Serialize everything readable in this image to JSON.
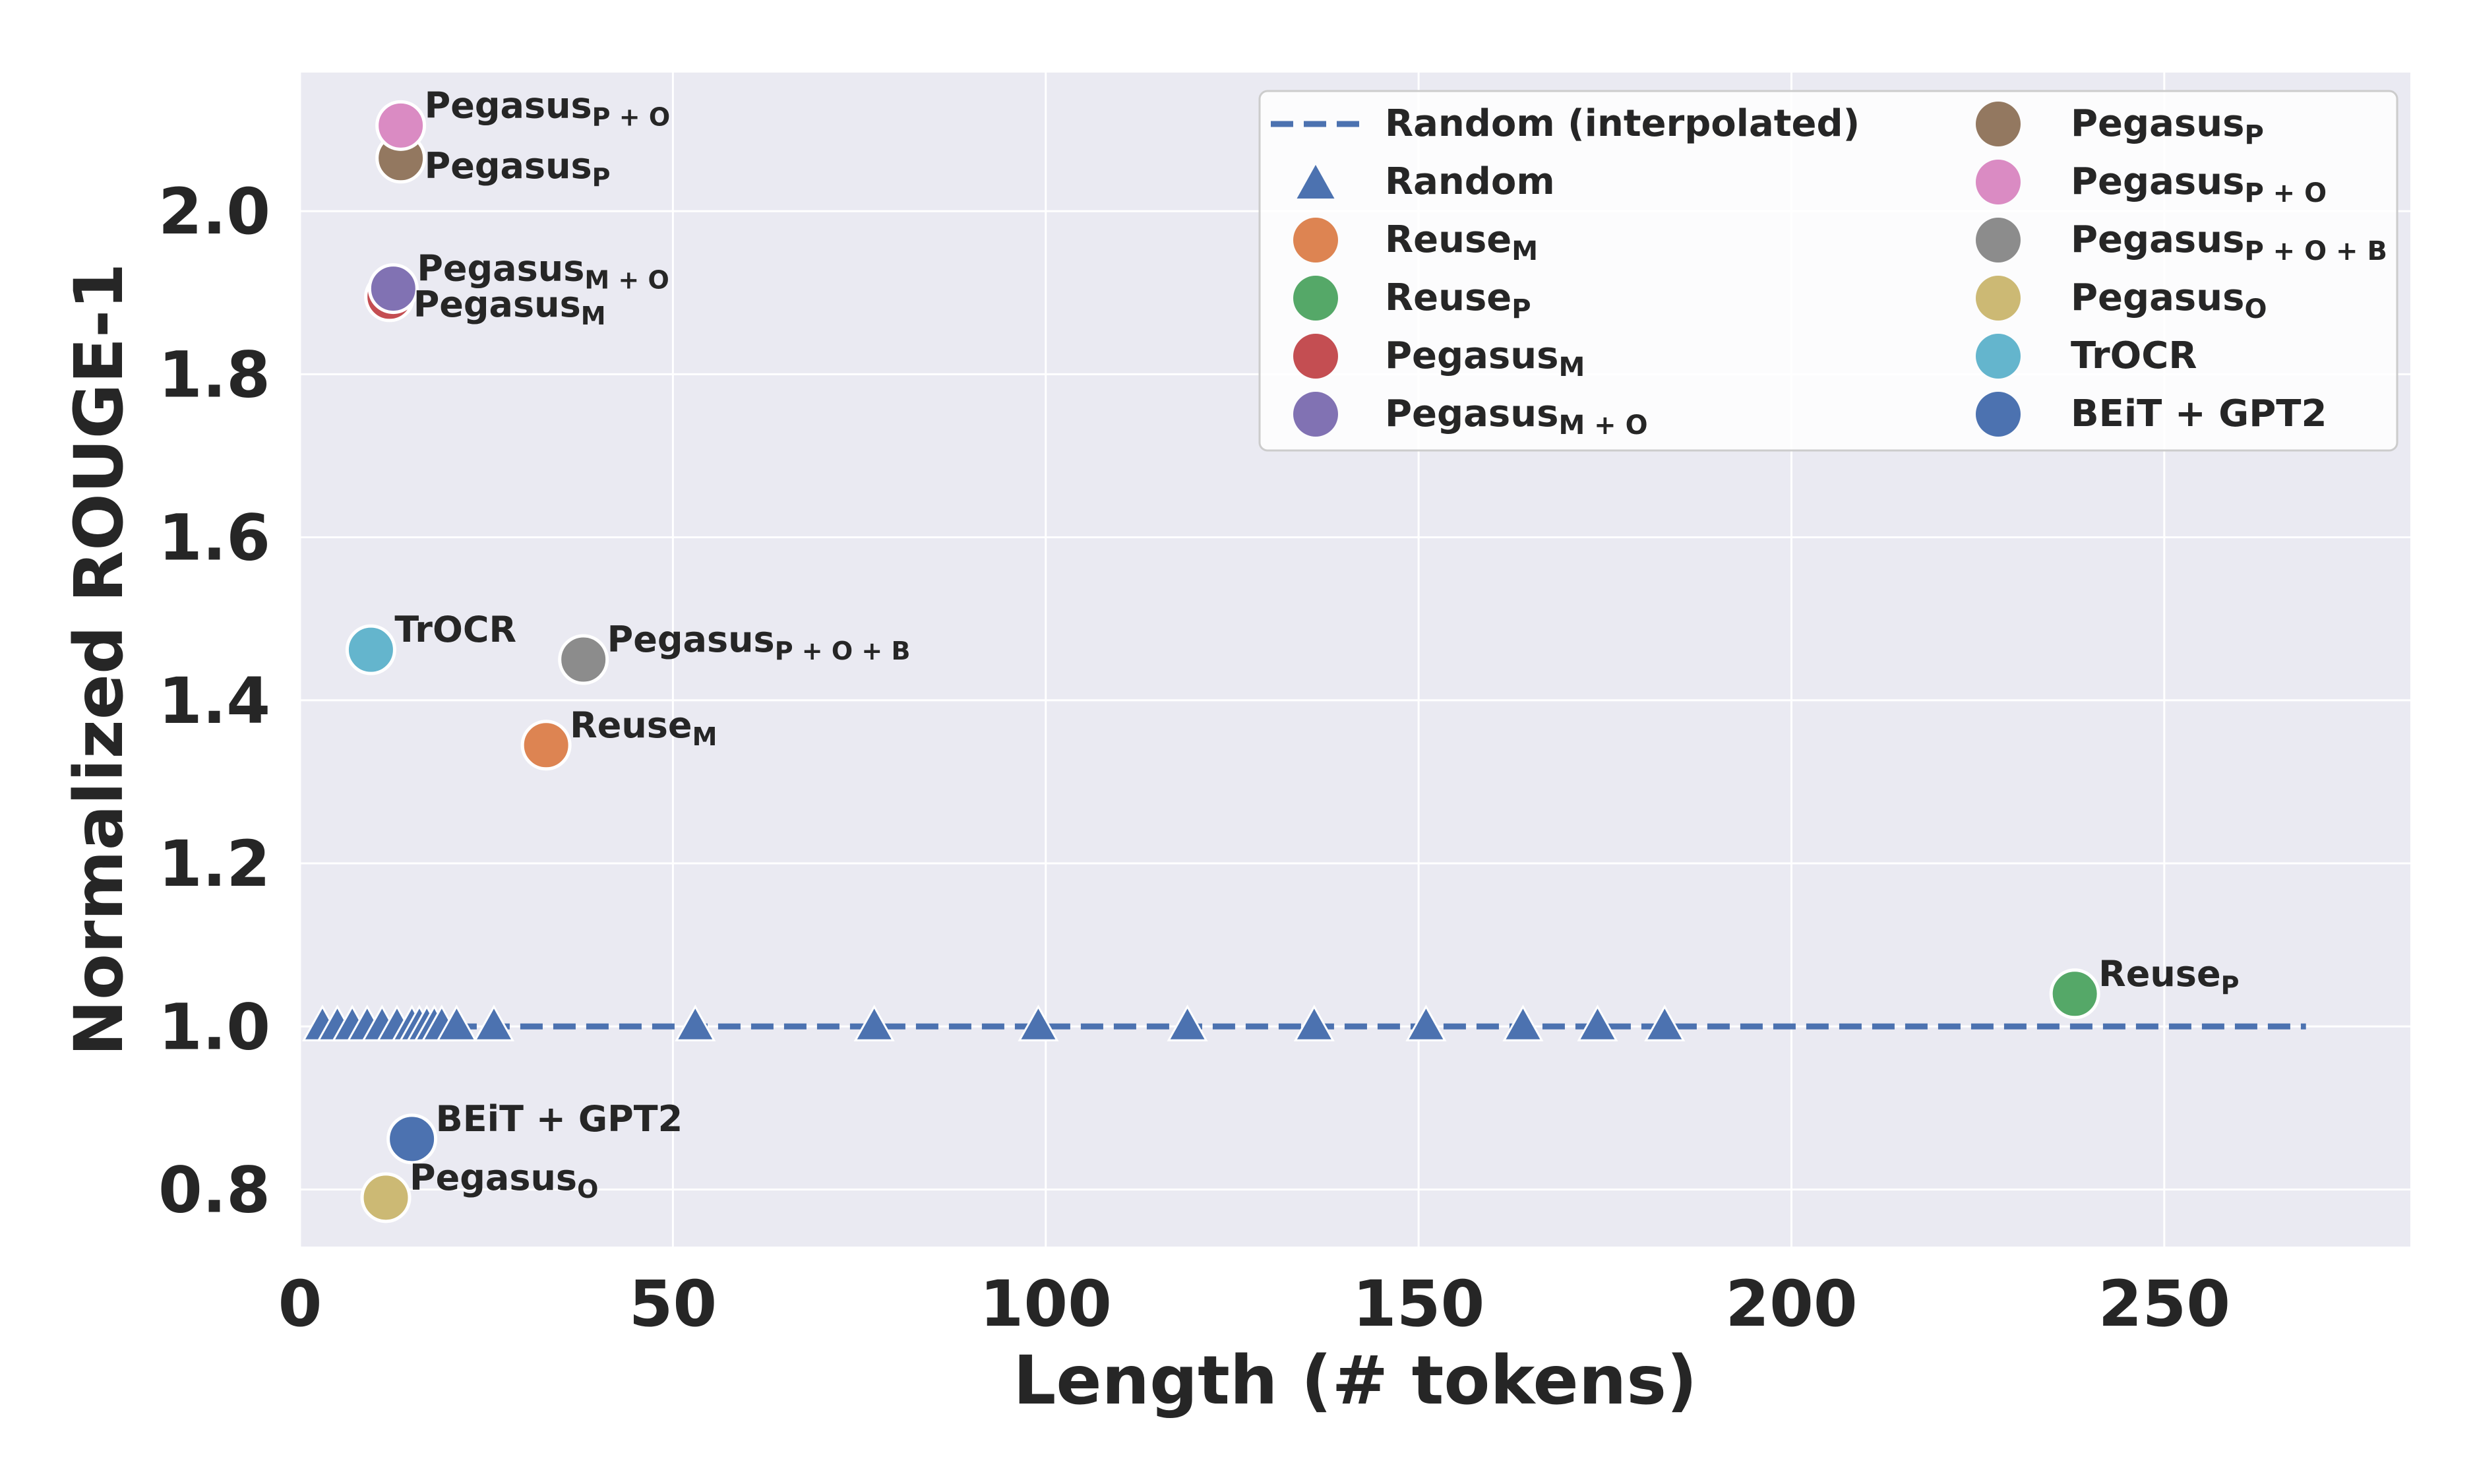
{
  "chart_data": {
    "type": "scatter",
    "xlabel": "Length (# tokens)",
    "ylabel": "Normalized ROUGE-1",
    "xlim": [
      0,
      283
    ],
    "ylim": [
      0.73,
      2.17
    ],
    "xticks": [
      "0",
      "50",
      "100",
      "150",
      "200",
      "250"
    ],
    "yticks": [
      "0.8",
      "1.0",
      "1.2",
      "1.4",
      "1.6",
      "1.8",
      "2.0"
    ],
    "grid": true,
    "legend_position": "top-right",
    "random_line": {
      "label": "Random (interpolated)",
      "color": "#4c72b0",
      "x": [
        3,
        269
      ],
      "y": [
        1.0,
        1.0
      ]
    },
    "random_points": {
      "label": "Random",
      "color": "#4c72b0",
      "x": [
        3,
        5,
        7,
        9,
        11,
        13,
        15,
        16,
        17,
        18,
        19,
        21,
        26,
        53,
        77,
        99,
        119,
        136,
        151,
        164,
        174,
        183
      ],
      "y": [
        1.0,
        1.0,
        1.0,
        1.0,
        1.0,
        1.0,
        1.0,
        1.0,
        1.0,
        1.0,
        1.0,
        1.0,
        1.0,
        1.0,
        1.0,
        1.0,
        1.0,
        1.0,
        1.0,
        1.0,
        1.0,
        1.0
      ]
    },
    "models": [
      {
        "name": "Reuse",
        "sub": "M",
        "x": 33,
        "y": 1.345,
        "color": "#dd8452",
        "label_side": "right"
      },
      {
        "name": "Reuse",
        "sub": "P",
        "x": 238,
        "y": 1.04,
        "color": "#55a868",
        "label_side": "right"
      },
      {
        "name": "Pegasus",
        "sub": "M",
        "x": 12,
        "y": 1.895,
        "color": "#c44e52",
        "label_side": "right-below"
      },
      {
        "name": "Pegasus",
        "sub": "M + O",
        "x": 12.5,
        "y": 1.905,
        "color": "#8172b3",
        "label_side": "right"
      },
      {
        "name": "Pegasus",
        "sub": "P",
        "x": 13.5,
        "y": 2.065,
        "color": "#937860",
        "label_side": "right-below"
      },
      {
        "name": "Pegasus",
        "sub": "P + O",
        "x": 13.5,
        "y": 2.105,
        "color": "#da8bc3",
        "label_side": "right"
      },
      {
        "name": "Pegasus",
        "sub": "P + O + B",
        "x": 38,
        "y": 1.45,
        "color": "#8c8c8c",
        "label_side": "right"
      },
      {
        "name": "Pegasus",
        "sub": "O",
        "x": 11.5,
        "y": 0.79,
        "color": "#ccb974",
        "label_side": "right"
      },
      {
        "name": "TrOCR",
        "sub": "",
        "x": 9.5,
        "y": 1.462,
        "color": "#64b5cd",
        "label_side": "right"
      },
      {
        "name": "BEiT + GPT2",
        "sub": "",
        "x": 15,
        "y": 0.862,
        "color": "#4c72b0",
        "label_side": "right"
      }
    ],
    "legend": [
      {
        "kind": "line",
        "name": "Random (interpolated)",
        "sub": "",
        "color": "#4c72b0"
      },
      {
        "kind": "triangle",
        "name": "Random",
        "sub": "",
        "color": "#4c72b0"
      },
      {
        "kind": "dot",
        "name": "Reuse",
        "sub": "M",
        "color": "#dd8452"
      },
      {
        "kind": "dot",
        "name": "Reuse",
        "sub": "P",
        "color": "#55a868"
      },
      {
        "kind": "dot",
        "name": "Pegasus",
        "sub": "M",
        "color": "#c44e52"
      },
      {
        "kind": "dot",
        "name": "Pegasus",
        "sub": "M + O",
        "color": "#8172b3"
      },
      {
        "kind": "dot",
        "name": "Pegasus",
        "sub": "P",
        "color": "#937860"
      },
      {
        "kind": "dot",
        "name": "Pegasus",
        "sub": "P + O",
        "color": "#da8bc3"
      },
      {
        "kind": "dot",
        "name": "Pegasus",
        "sub": "P + O + B",
        "color": "#8c8c8c"
      },
      {
        "kind": "dot",
        "name": "Pegasus",
        "sub": "O",
        "color": "#ccb974"
      },
      {
        "kind": "dot",
        "name": "TrOCR",
        "sub": "",
        "color": "#64b5cd"
      },
      {
        "kind": "dot",
        "name": "BEiT + GPT2",
        "sub": "",
        "color": "#4c72b0"
      }
    ]
  }
}
